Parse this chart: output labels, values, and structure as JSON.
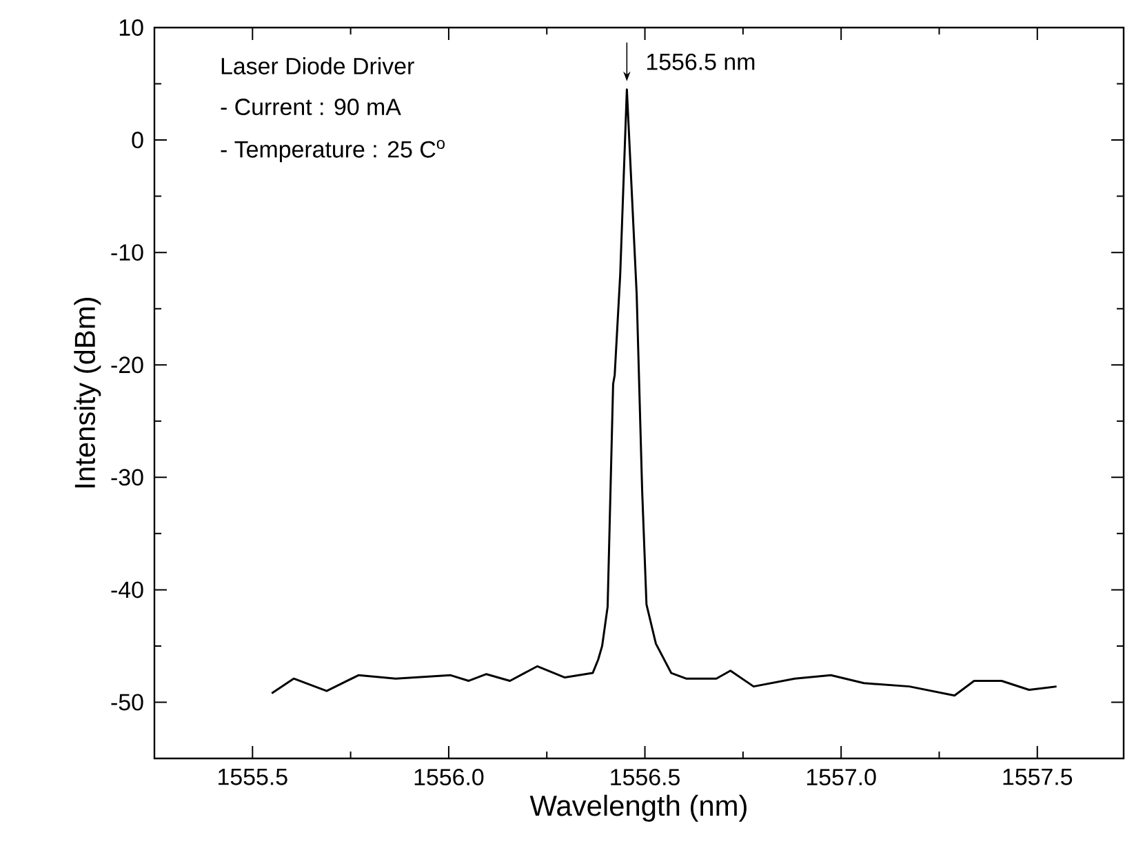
{
  "chart_data": {
    "type": "line",
    "xlabel": "Wavelength (nm)",
    "ylabel": "Intensity (dBm)",
    "xlim": [
      1555.25,
      1557.72
    ],
    "ylim": [
      -55,
      10
    ],
    "xticks": [
      1555.5,
      {
        "value": 1556,
        "label": "1556.0"
      },
      1556.5,
      {
        "value": 1557,
        "label": "1557.0"
      },
      1557.5
    ],
    "yticks": [
      -50,
      -40,
      -30,
      -20,
      -10,
      0,
      10
    ],
    "grid": false,
    "marker": "none",
    "line_style": "solid",
    "annotations": [
      "Laser Diode Driver",
      "- Current : 90 mA",
      "- Temperature : 25 C$^{o}$",
      {
        "text": "1556.5 nm",
        "x": 1556.454,
        "y": 4.5
      }
    ],
    "series": [
      {
        "color": "#000000",
        "x": [
          1555.549,
          1555.605,
          1555.689,
          1555.77,
          1555.865,
          1556.005,
          1556.051,
          1556.096,
          1556.156,
          1556.226,
          1556.296,
          1556.367,
          1556.381,
          1556.391,
          1556.405,
          1556.419,
          1556.423,
          1556.437,
          1556.454,
          1556.479,
          1556.493,
          1556.504,
          1556.528,
          1556.567,
          1556.605,
          1556.682,
          1556.718,
          1556.777,
          1556.882,
          1556.974,
          1557.058,
          1557.174,
          1557.289,
          1557.339,
          1557.409,
          1557.479,
          1557.549
        ],
        "values": [
          -49.2,
          -47.9,
          -49.0,
          -47.6,
          -47.9,
          -47.6,
          -48.1,
          -47.5,
          -48.1,
          -46.8,
          -47.8,
          -47.4,
          -46.2,
          -45.0,
          -41.5,
          -21.7,
          -20.9,
          -12.0,
          4.5,
          -13.7,
          -31.2,
          -41.3,
          -44.8,
          -47.4,
          -47.9,
          -47.9,
          -47.2,
          -48.6,
          -47.9,
          -47.6,
          -48.3,
          -48.6,
          -49.4,
          -48.1,
          -48.1,
          -48.9,
          -48.6
        ]
      }
    ]
  }
}
